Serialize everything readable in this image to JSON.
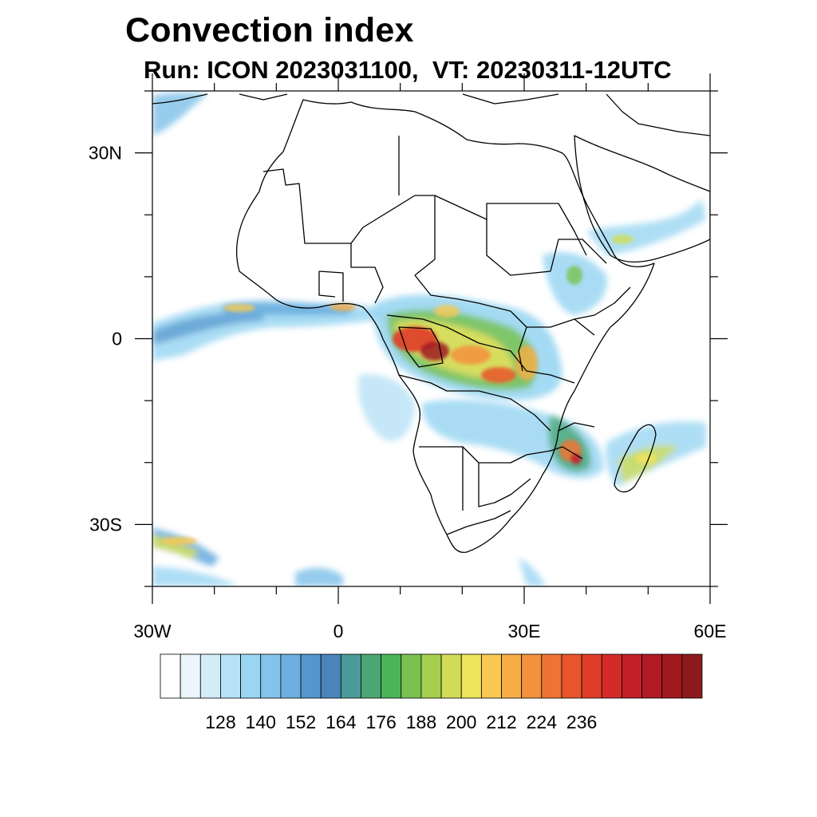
{
  "header": {
    "title": "Convection index",
    "subtitle": "Run: ICON 2023031100,  VT: 20230311-12UTC"
  },
  "map": {
    "region": "Africa",
    "extent": {
      "lon_min": -30,
      "lon_max": 60,
      "lat_min": -40,
      "lat_max": 40
    },
    "lat_ticks": [
      {
        "value": 30,
        "label": "30N"
      },
      {
        "value": 0,
        "label": "0"
      },
      {
        "value": -30,
        "label": "30S"
      }
    ],
    "lon_ticks": [
      {
        "value": -30,
        "label": "30W"
      },
      {
        "value": 0,
        "label": "0"
      },
      {
        "value": 30,
        "label": "30E"
      },
      {
        "value": 60,
        "label": "60E"
      }
    ],
    "colors": {
      "coastline": "#000000",
      "background": "#ffffff"
    }
  },
  "colorbar": {
    "colors": [
      "#ffffff",
      "#eaf6fc",
      "#d2ecf8",
      "#b7e1f6",
      "#9ad6f2",
      "#84c3ea",
      "#6cafe0",
      "#5596cd",
      "#4a84ba",
      "#4a9b97",
      "#4aa775",
      "#4bb458",
      "#79c250",
      "#a6cf4f",
      "#d0dc55",
      "#eee45c",
      "#f8c851",
      "#f7ad45",
      "#f3913c",
      "#ee7433",
      "#e8552c",
      "#e03c2a",
      "#d42a2a",
      "#c21f2a",
      "#b11b26",
      "#a01a20",
      "#8c1a1c"
    ],
    "labels": [
      "128",
      "140",
      "152",
      "164",
      "176",
      "188",
      "200",
      "212",
      "224",
      "236"
    ]
  }
}
